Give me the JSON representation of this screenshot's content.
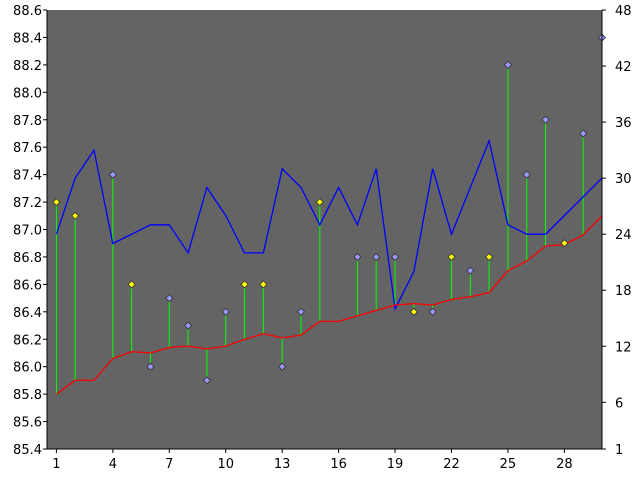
{
  "chart_data": {
    "type": "line",
    "title": "",
    "xlabel": "",
    "ylabel": "",
    "x": [
      1,
      2,
      3,
      4,
      5,
      6,
      7,
      8,
      9,
      10,
      11,
      12,
      13,
      14,
      15,
      16,
      17,
      18,
      19,
      20,
      21,
      22,
      23,
      24,
      25,
      26,
      27,
      28,
      29,
      30
    ],
    "x_ticks": [
      1,
      4,
      7,
      10,
      13,
      16,
      19,
      22,
      25,
      28
    ],
    "x_range": [
      0.5,
      30
    ],
    "left_axis": {
      "ylim": [
        85.4,
        88.6
      ],
      "ticks": [
        "85.4",
        "85.6",
        "85.8",
        "86.0",
        "86.2",
        "86.4",
        "86.6",
        "86.8",
        "87.0",
        "87.2",
        "87.4",
        "87.6",
        "87.8",
        "88.0",
        "88.2",
        "88.4",
        "88.6"
      ]
    },
    "right_axis": {
      "ylim": [
        1,
        48
      ],
      "ticks": [
        "1",
        "6",
        "12",
        "18",
        "24",
        "30",
        "36",
        "42",
        "48"
      ]
    },
    "series": [
      {
        "axis": "right",
        "style": "line",
        "color": "#0000ff",
        "values": [
          24,
          30,
          33,
          23,
          24,
          25,
          25,
          22,
          29,
          26,
          22,
          22,
          31,
          29,
          25,
          29,
          25,
          31,
          16,
          20,
          31,
          24,
          29,
          34,
          25,
          24,
          24,
          26,
          28,
          30
        ]
      },
      {
        "axis": "left",
        "style": "line",
        "color": "#ff0000",
        "values": [
          85.8,
          85.9,
          85.9,
          86.06,
          86.11,
          86.1,
          86.14,
          86.15,
          86.13,
          86.15,
          86.2,
          86.24,
          86.21,
          86.23,
          86.33,
          86.33,
          86.37,
          86.41,
          86.45,
          86.46,
          86.45,
          86.49,
          86.51,
          86.54,
          86.7,
          86.77,
          86.88,
          86.89,
          86.96,
          87.1
        ]
      },
      {
        "axis": "left",
        "style": "markers-with-stems",
        "stem_color": "#00ff00",
        "values": [
          87.2,
          87.1,
          null,
          87.4,
          86.6,
          86.0,
          86.5,
          86.3,
          85.9,
          86.4,
          86.6,
          86.6,
          86.0,
          86.4,
          87.2,
          null,
          86.8,
          86.8,
          86.8,
          86.4,
          86.4,
          86.8,
          86.7,
          86.8,
          88.2,
          87.4,
          87.8,
          86.9,
          87.7,
          88.4
        ],
        "marker_colors": [
          "#ffff00",
          "#ffff00",
          "",
          "#9999ff",
          "#ffff00",
          "#9999ff",
          "#9999ff",
          "#9999ff",
          "#9999ff",
          "#9999ff",
          "#ffff00",
          "#ffff00",
          "#9999ff",
          "#9999ff",
          "#ffff00",
          "",
          "#9999ff",
          "#9999ff",
          "#9999ff",
          "#ffff00",
          "#9999ff",
          "#ffff00",
          "#9999ff",
          "#ffff00",
          "#9999ff",
          "#9999ff",
          "#9999ff",
          "#ffff00",
          "#9999ff",
          "#9999ff"
        ]
      }
    ],
    "plot_background": "#646464",
    "grid": false
  }
}
